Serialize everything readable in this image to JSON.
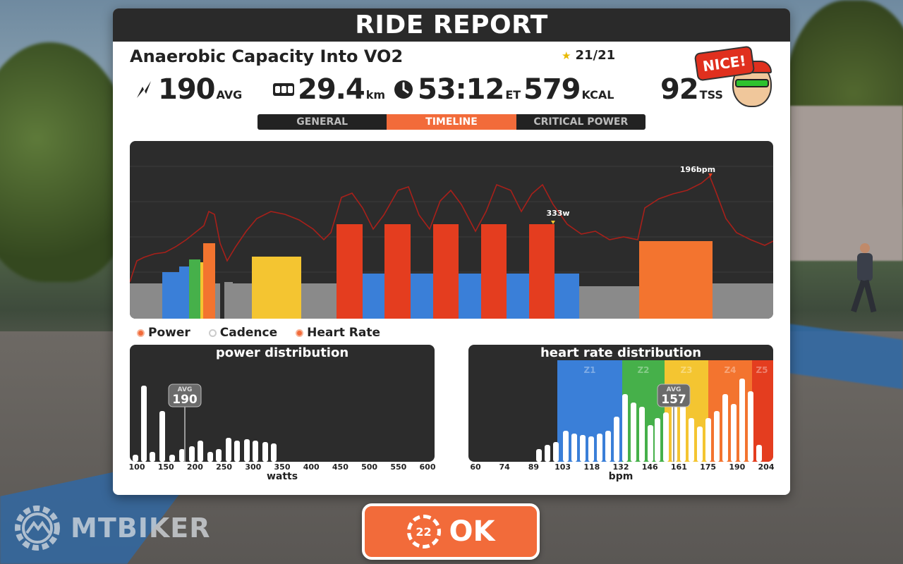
{
  "header": {
    "title": "RIDE REPORT"
  },
  "workout": {
    "name": "Anaerobic Capacity Into VO2",
    "stars": "21/21"
  },
  "stats": {
    "power": {
      "value": "190",
      "unit": "AVG"
    },
    "distance": {
      "value": "29.4",
      "unit": "km"
    },
    "time": {
      "value": "53:12",
      "unit": "ET"
    },
    "calories": {
      "value": "579",
      "unit": "KCAL"
    },
    "tss": {
      "value": "92",
      "unit": "TSS"
    }
  },
  "badge": {
    "text": "NICE!"
  },
  "tabs": [
    {
      "label": "GENERAL",
      "active": false
    },
    {
      "label": "TIMELINE",
      "active": true
    },
    {
      "label": "CRITICAL POWER",
      "active": false
    }
  ],
  "timeline": {
    "max_hr_label": "196bpm",
    "max_power_label": "333w"
  },
  "legend": {
    "power": "Power",
    "cadence": "Cadence",
    "heart_rate": "Heart Rate"
  },
  "power_distribution": {
    "title": "power distribution",
    "avg_label": "AVG",
    "avg_value": "190",
    "ticks": [
      "100",
      "150",
      "200",
      "250",
      "300",
      "350",
      "400",
      "450",
      "500",
      "550",
      "600"
    ],
    "axis_label": "watts"
  },
  "hr_distribution": {
    "title": "heart rate distribution",
    "avg_label": "AVG",
    "avg_value": "157",
    "zones": [
      "Z1",
      "Z2",
      "Z3",
      "Z4",
      "Z5"
    ],
    "ticks": [
      "60",
      "74",
      "89",
      "103",
      "118",
      "132",
      "146",
      "161",
      "175",
      "190",
      "204"
    ],
    "axis_label": "bpm"
  },
  "ok_button": {
    "label": "OK",
    "badge": "22"
  },
  "watermark": {
    "text": "MTBIKER"
  },
  "colors": {
    "accent": "#f26b3a",
    "zone_blue": "#3a7fd8",
    "zone_green": "#46b04a",
    "zone_yellow": "#f4c531",
    "zone_orange": "#f3742f",
    "zone_red": "#e43d1f",
    "zone_gray": "#8a8a8a"
  },
  "chart_data": [
    {
      "type": "area",
      "title": "",
      "series": [
        {
          "name": "Power",
          "unit": "w",
          "peak": 333
        },
        {
          "name": "Heart Rate",
          "unit": "bpm",
          "peak": 196
        }
      ]
    },
    {
      "type": "bar",
      "title": "power distribution",
      "xlabel": "watts",
      "xlim": [
        100,
        600
      ],
      "average": 190
    },
    {
      "type": "bar",
      "title": "heart rate distribution",
      "xlabel": "bpm",
      "xlim": [
        60,
        204
      ],
      "average": 157,
      "zones": [
        "Z1",
        "Z2",
        "Z3",
        "Z4",
        "Z5"
      ]
    }
  ]
}
